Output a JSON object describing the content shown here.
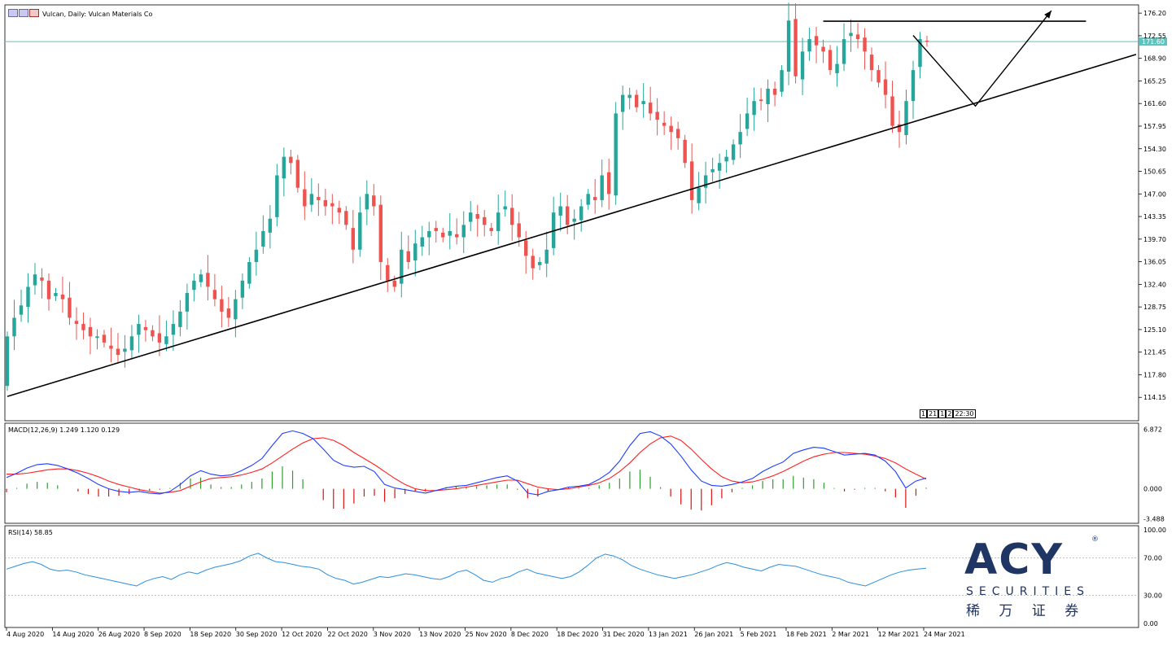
{
  "header": {
    "title": "Vulcan, Daily:  Vulcan Materials Co",
    "time_box": [
      "1",
      "21",
      "1",
      "2",
      "22:30"
    ]
  },
  "colors": {
    "bull": "#26a69a",
    "bear": "#ef5350",
    "macd": "#1e3cff",
    "signal": "#ff2020",
    "hist_pos": "#2e9e2e",
    "hist_neg": "#e01010",
    "rsi": "#2a8fe0",
    "price_line": "#5bc4c0",
    "logo_blue": "#1f3563"
  },
  "price_tag": "171.60",
  "chart_data": [
    {
      "type": "candlestick",
      "y_ticks": [
        "176.20",
        "172.55",
        "168.90",
        "165.25",
        "161.60",
        "157.95",
        "154.30",
        "150.65",
        "147.00",
        "143.35",
        "139.70",
        "136.05",
        "132.40",
        "128.75",
        "125.10",
        "121.45",
        "117.80",
        "114.15"
      ],
      "ylim": [
        110.5,
        177.4
      ],
      "current_price": 171.6,
      "x_labels": [
        "4 Aug 2020",
        "14 Aug 2020",
        "26 Aug 2020",
        "8 Sep 2020",
        "18 Sep 2020",
        "30 Sep 2020",
        "12 Oct 2020",
        "22 Oct 2020",
        "3 Nov 2020",
        "13 Nov 2020",
        "25 Nov 2020",
        "8 Dec 2020",
        "18 Dec 2020",
        "31 Dec 2020",
        "13 Jan 2021",
        "26 Jan 2021",
        "5 Feb 2021",
        "18 Feb 2021",
        "2 Mar 2021",
        "12 Mar 2021",
        "24 Mar 2021"
      ],
      "closes": [
        124,
        127,
        129,
        132,
        134,
        133,
        130,
        131,
        130,
        127,
        126,
        125,
        124,
        124,
        123,
        122,
        121,
        122,
        124,
        126,
        125,
        124,
        123,
        124,
        126,
        128,
        131,
        133,
        134,
        132,
        130,
        128,
        127,
        130,
        133,
        136,
        138,
        141,
        143,
        150,
        153,
        152,
        148,
        145,
        147,
        146,
        145,
        145,
        144,
        142,
        138,
        144,
        147,
        145,
        136,
        133,
        132,
        138,
        136,
        139,
        140,
        141,
        141,
        140,
        141,
        140,
        142,
        144,
        143,
        142,
        141,
        144,
        145,
        142,
        140,
        137,
        135,
        136,
        138,
        144,
        145,
        142,
        143,
        145,
        147,
        146,
        150,
        147,
        160,
        163,
        163,
        161,
        162,
        160,
        159,
        158,
        157,
        156,
        152,
        146,
        148,
        150,
        151,
        152,
        153,
        155,
        157,
        160,
        162,
        162,
        164,
        163,
        167,
        175,
        166,
        170,
        172,
        171,
        170,
        167,
        168,
        172,
        173,
        172,
        170,
        167,
        165,
        163,
        158,
        157,
        162,
        167,
        172,
        171.6
      ],
      "trendline": [
        [
          0,
          114.3
        ],
        [
          133,
          159.3
        ]
      ],
      "resistance": 174.9,
      "projection": [
        [
          131,
          172.6
        ],
        [
          140,
          161.2
        ],
        [
          151,
          176.6
        ]
      ]
    },
    {
      "type": "line",
      "title": "MACD(12,26,9) 1.249 1.120 0.129",
      "y_ticks": [
        "6.872",
        "0.000",
        "-3.488"
      ],
      "ylim": [
        -3.8,
        7.4
      ],
      "series": [
        {
          "name": "MACD",
          "values": [
            1.3,
            1.8,
            2.4,
            2.8,
            2.9,
            2.7,
            2.3,
            1.8,
            1.2,
            0.5,
            0.0,
            -0.3,
            -0.4,
            -0.3,
            -0.5,
            -0.6,
            -0.3,
            0.5,
            1.5,
            2.1,
            1.7,
            1.5,
            1.6,
            2.1,
            2.7,
            3.5,
            5.0,
            6.4,
            6.7,
            6.4,
            5.8,
            4.6,
            3.3,
            2.7,
            2.5,
            2.6,
            2.0,
            0.5,
            0.1,
            -0.1,
            -0.3,
            -0.5,
            -0.2,
            0.1,
            0.3,
            0.4,
            0.7,
            1.0,
            1.3,
            1.5,
            0.9,
            -0.5,
            -0.7,
            -0.3,
            -0.1,
            0.2,
            0.3,
            0.5,
            1.1,
            1.9,
            3.2,
            5.0,
            6.4,
            6.6,
            6.1,
            5.2,
            3.8,
            2.2,
            0.9,
            0.4,
            0.3,
            0.5,
            0.8,
            1.2,
            2.0,
            2.6,
            3.1,
            4.1,
            4.5,
            4.8,
            4.7,
            4.3,
            3.9,
            4.0,
            4.1,
            3.9,
            3.2,
            2.0,
            0.1,
            0.9,
            1.249
          ]
        },
        {
          "name": "Signal",
          "values": [
            1.7,
            1.7,
            1.8,
            2.0,
            2.2,
            2.3,
            2.3,
            2.1,
            1.8,
            1.4,
            0.9,
            0.5,
            0.2,
            -0.1,
            -0.3,
            -0.5,
            -0.4,
            -0.2,
            0.3,
            0.8,
            1.2,
            1.3,
            1.4,
            1.6,
            1.9,
            2.3,
            3.0,
            3.8,
            4.6,
            5.3,
            5.8,
            5.9,
            5.6,
            5.0,
            4.2,
            3.5,
            2.8,
            2.0,
            1.2,
            0.5,
            0.0,
            -0.2,
            -0.2,
            -0.1,
            0.0,
            0.2,
            0.4,
            0.6,
            0.8,
            1.0,
            1.0,
            0.6,
            0.2,
            0.0,
            -0.1,
            0.0,
            0.2,
            0.4,
            0.7,
            1.2,
            2.0,
            3.0,
            4.2,
            5.2,
            5.9,
            6.1,
            5.6,
            4.6,
            3.4,
            2.3,
            1.4,
            0.9,
            0.7,
            0.8,
            1.1,
            1.5,
            2.0,
            2.6,
            3.2,
            3.7,
            4.0,
            4.2,
            4.2,
            4.1,
            4.0,
            3.8,
            3.5,
            3.0,
            2.3,
            1.7,
            1.12
          ]
        },
        {
          "name": "Histogram",
          "values": [
            -0.4,
            0.1,
            0.6,
            0.8,
            0.7,
            0.4,
            0.0,
            -0.3,
            -0.6,
            -0.9,
            -0.9,
            -0.8,
            -0.6,
            -0.2,
            -0.2,
            -0.1,
            0.1,
            0.7,
            1.2,
            1.3,
            0.5,
            0.2,
            0.2,
            0.5,
            0.8,
            1.2,
            2.0,
            2.6,
            2.1,
            1.1,
            0.0,
            -1.3,
            -2.3,
            -2.3,
            -1.7,
            -0.9,
            -0.8,
            -1.5,
            -1.1,
            -0.6,
            -0.3,
            -0.3,
            0.0,
            0.2,
            0.3,
            0.2,
            0.3,
            0.4,
            0.5,
            0.5,
            -0.1,
            -1.1,
            -0.9,
            -0.3,
            0.0,
            0.2,
            0.1,
            0.1,
            0.4,
            0.7,
            1.2,
            2.0,
            2.2,
            1.4,
            0.2,
            -0.9,
            -1.8,
            -2.4,
            -2.5,
            -1.9,
            -1.1,
            -0.4,
            0.1,
            0.4,
            0.9,
            1.1,
            1.1,
            1.5,
            1.3,
            1.1,
            0.7,
            0.1,
            -0.3,
            -0.1,
            0.1,
            0.1,
            -0.3,
            -1.0,
            -2.2,
            -0.8,
            0.129
          ]
        }
      ]
    },
    {
      "type": "line",
      "title": "RSI(14) 58.85",
      "y_ticks": [
        "100.00",
        "70.00",
        "30.00",
        "0.00"
      ],
      "ylim": [
        0,
        100
      ],
      "levels": [
        30,
        70
      ],
      "series": [
        {
          "name": "RSI",
          "values": [
            58,
            61,
            64,
            66,
            63,
            58,
            56,
            57,
            55,
            52,
            50,
            48,
            46,
            44,
            42,
            40,
            45,
            48,
            50,
            47,
            52,
            55,
            53,
            57,
            60,
            62,
            64,
            67,
            72,
            75,
            70,
            66,
            65,
            63,
            61,
            60,
            58,
            52,
            48,
            46,
            42,
            44,
            47,
            50,
            49,
            51,
            53,
            52,
            50,
            48,
            47,
            50,
            55,
            57,
            52,
            46,
            44,
            48,
            50,
            55,
            58,
            54,
            52,
            50,
            48,
            50,
            55,
            62,
            70,
            74,
            72,
            68,
            62,
            58,
            55,
            52,
            50,
            48,
            50,
            52,
            55,
            58,
            62,
            65,
            63,
            60,
            58,
            56,
            60,
            63,
            62,
            61,
            58,
            55,
            52,
            50,
            48,
            44,
            42,
            40,
            44,
            48,
            52,
            55,
            57,
            58,
            58.85
          ]
        }
      ]
    }
  ],
  "logo": {
    "letters": "ACY",
    "brand_line": "SECURITIES",
    "chinese": "稀 万 证 券",
    "registered": "®"
  }
}
